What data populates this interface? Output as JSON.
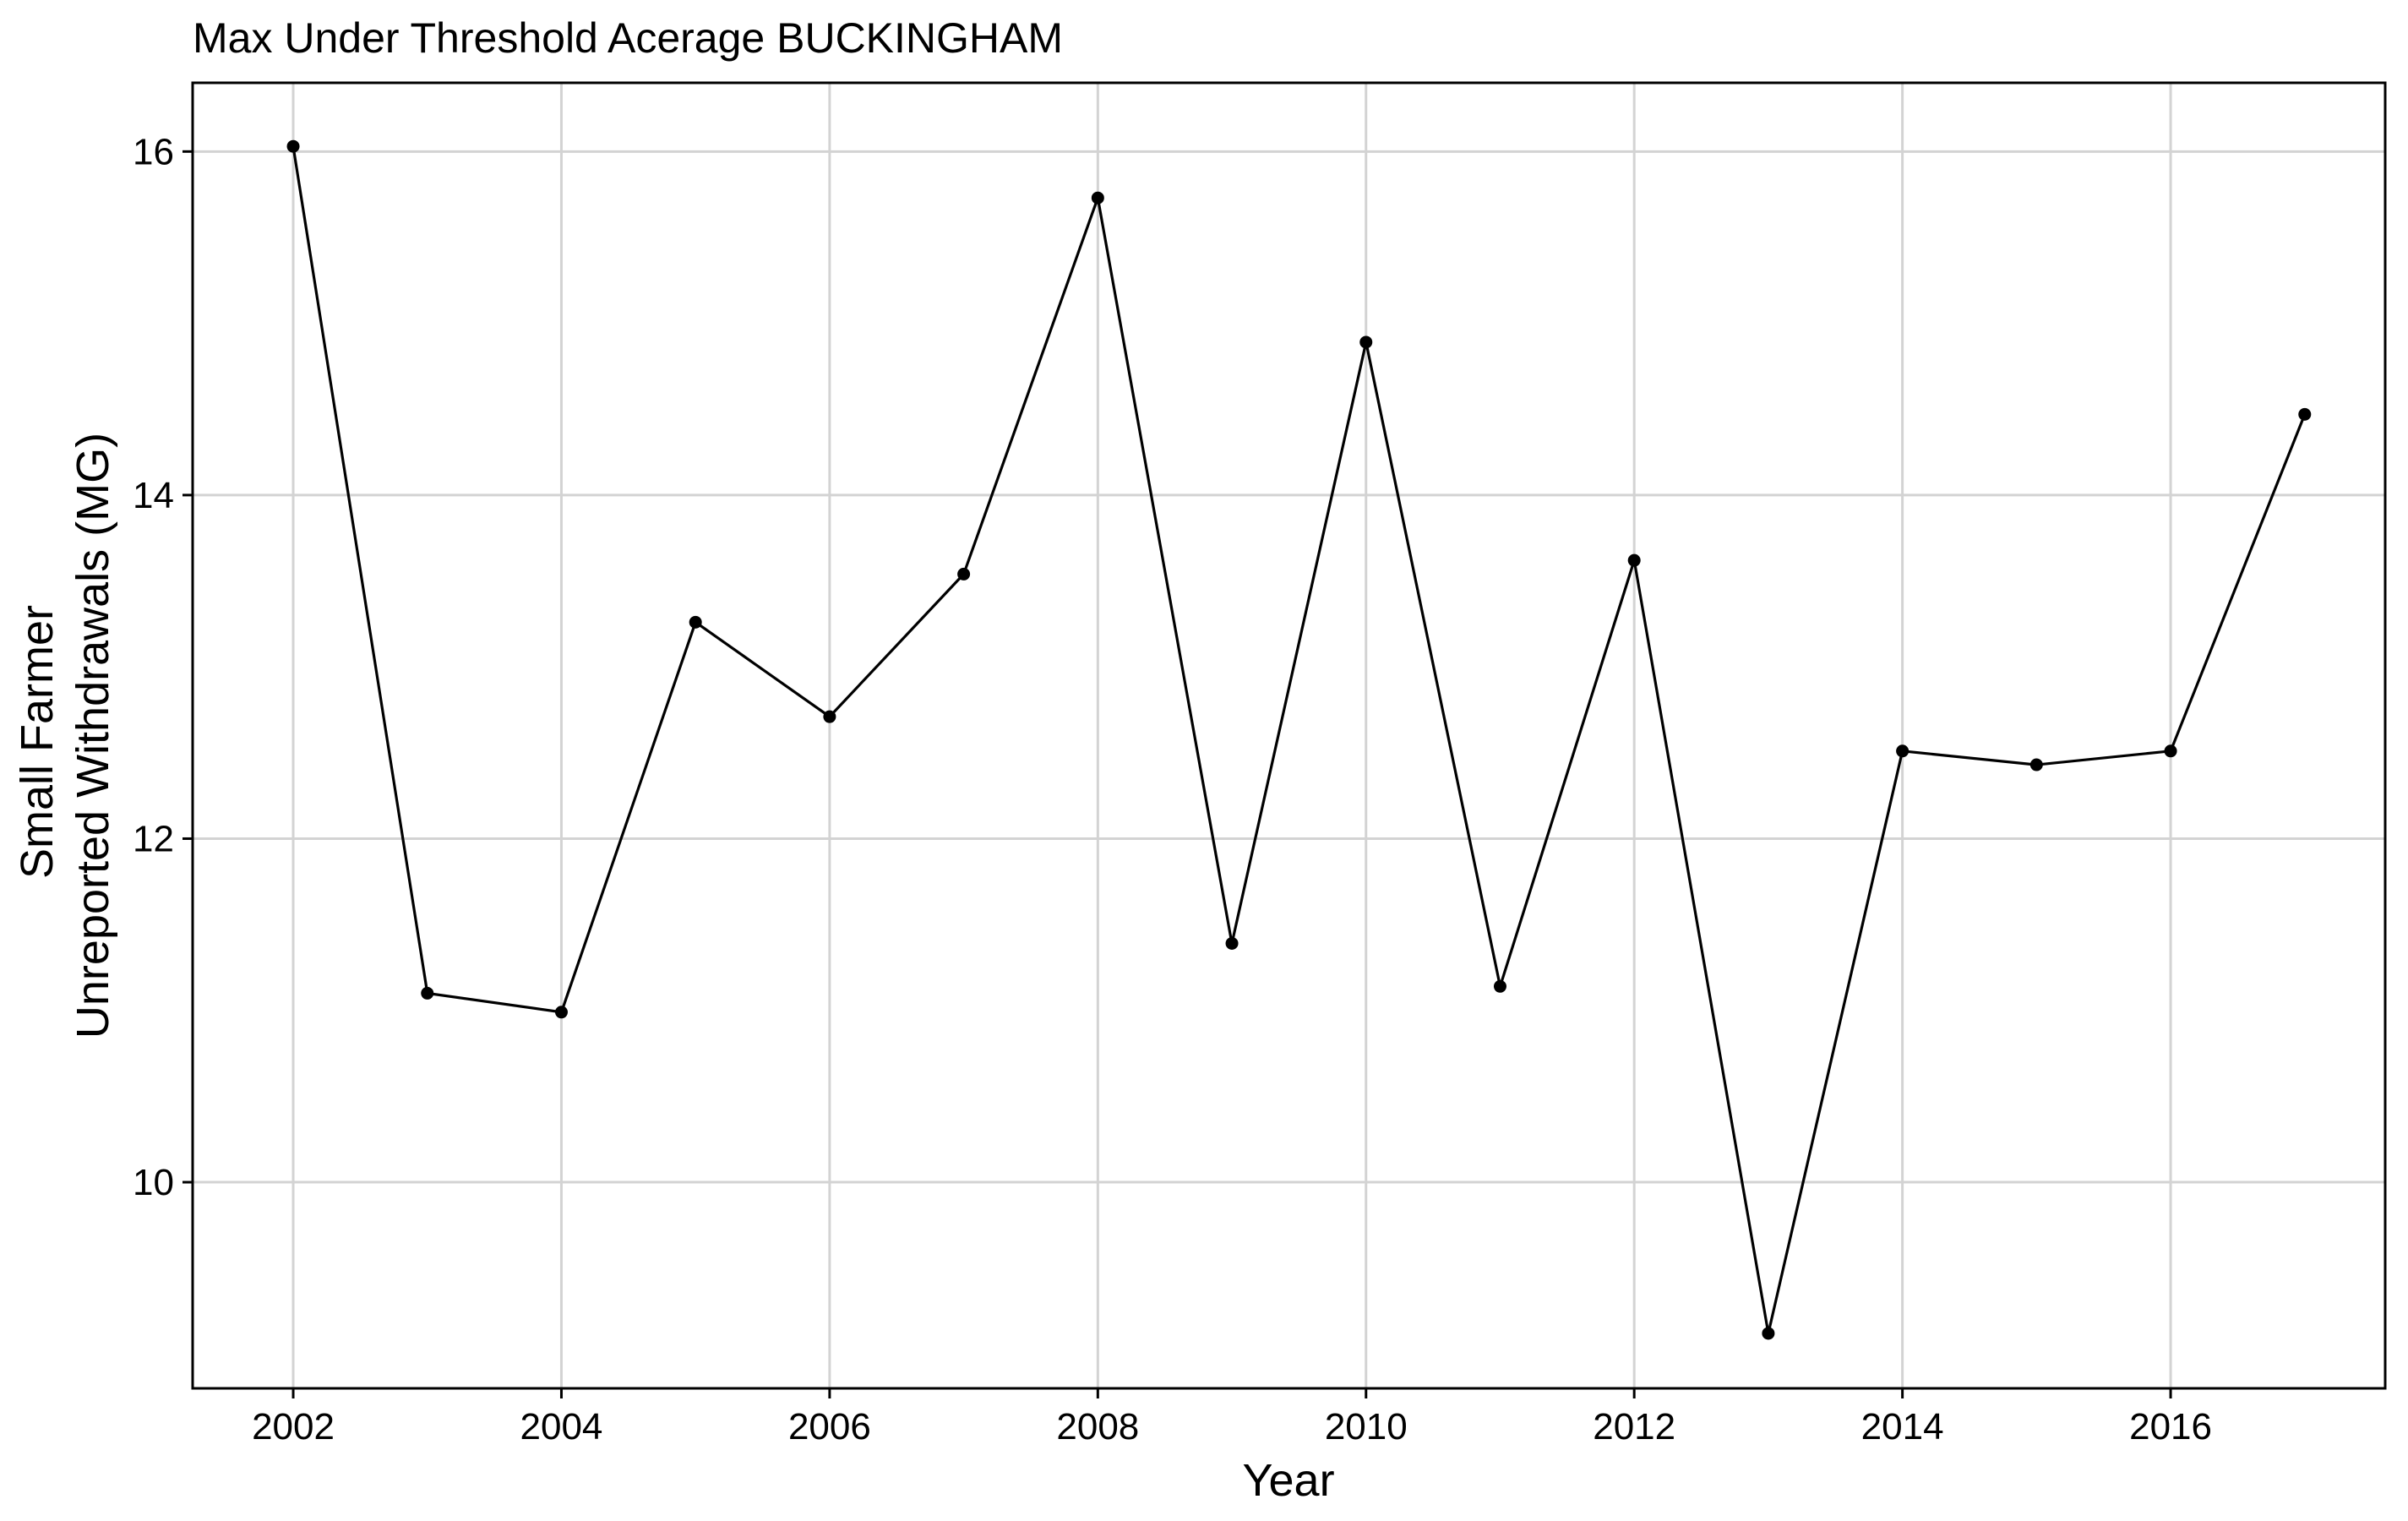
{
  "chart_data": {
    "type": "line",
    "title": "Max Under Threshold Acerage BUCKINGHAM",
    "xlabel": "Year",
    "ylabel_lines": [
      "Small Farmer",
      "Unreported Withdrawals (MG)"
    ],
    "x_ticks": [
      2002,
      2004,
      2006,
      2008,
      2010,
      2012,
      2014,
      2016
    ],
    "y_ticks": [
      10,
      12,
      14,
      16
    ],
    "xlim": [
      2001.25,
      2017.6
    ],
    "ylim": [
      8.8,
      16.4
    ],
    "grid": true,
    "legend": "none",
    "series": [
      {
        "x": [
          2002,
          2003,
          2004,
          2005,
          2006,
          2007,
          2008,
          2009,
          2010,
          2011,
          2012,
          2013,
          2014,
          2015,
          2016,
          2017
        ],
        "y": [
          16.03,
          11.1,
          10.99,
          13.26,
          12.71,
          13.54,
          15.73,
          11.39,
          14.89,
          11.14,
          13.62,
          9.12,
          12.51,
          12.43,
          12.51,
          14.47
        ]
      }
    ],
    "colors": {
      "line": "#000000",
      "point": "#000000",
      "grid": "#d3d3d3",
      "panel_border": "#000000",
      "background": "#ffffff"
    }
  }
}
